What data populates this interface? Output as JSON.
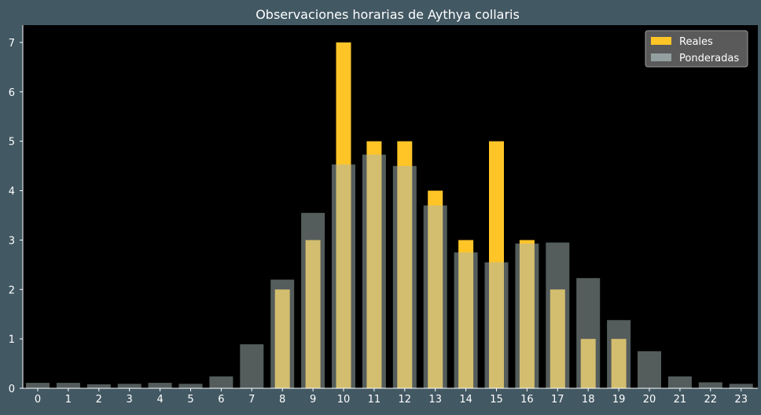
{
  "chart_data": {
    "type": "bar",
    "title": "Observaciones horarias de Aythya collaris",
    "xlabel": "",
    "ylabel": "",
    "categories": [
      "0",
      "1",
      "2",
      "3",
      "4",
      "5",
      "6",
      "7",
      "8",
      "9",
      "10",
      "11",
      "12",
      "13",
      "14",
      "15",
      "16",
      "17",
      "18",
      "19",
      "20",
      "21",
      "22",
      "23"
    ],
    "series": [
      {
        "name": "Reales",
        "color": "#ffc527",
        "values": [
          0,
          0,
          0,
          0,
          0,
          0,
          0,
          0,
          2,
          3,
          7,
          5,
          5,
          4,
          3,
          5,
          3,
          2,
          1,
          1,
          0,
          0,
          0,
          0
        ]
      },
      {
        "name": "Ponderadas",
        "color": "#a8b8b8",
        "values": [
          0.11,
          0.11,
          0.08,
          0.09,
          0.11,
          0.09,
          0.24,
          0.89,
          2.2,
          3.55,
          4.53,
          4.73,
          4.5,
          3.7,
          2.75,
          2.55,
          2.93,
          2.95,
          2.23,
          1.38,
          0.75,
          0.24,
          0.12,
          0.09
        ]
      }
    ],
    "ylim": [
      0,
      7.35
    ],
    "yticks": [
      0,
      1,
      2,
      3,
      4,
      5,
      6,
      7
    ],
    "grid": false,
    "legend_position": "top-right",
    "background_color": "#425863",
    "plot_background_color": "#000000"
  }
}
